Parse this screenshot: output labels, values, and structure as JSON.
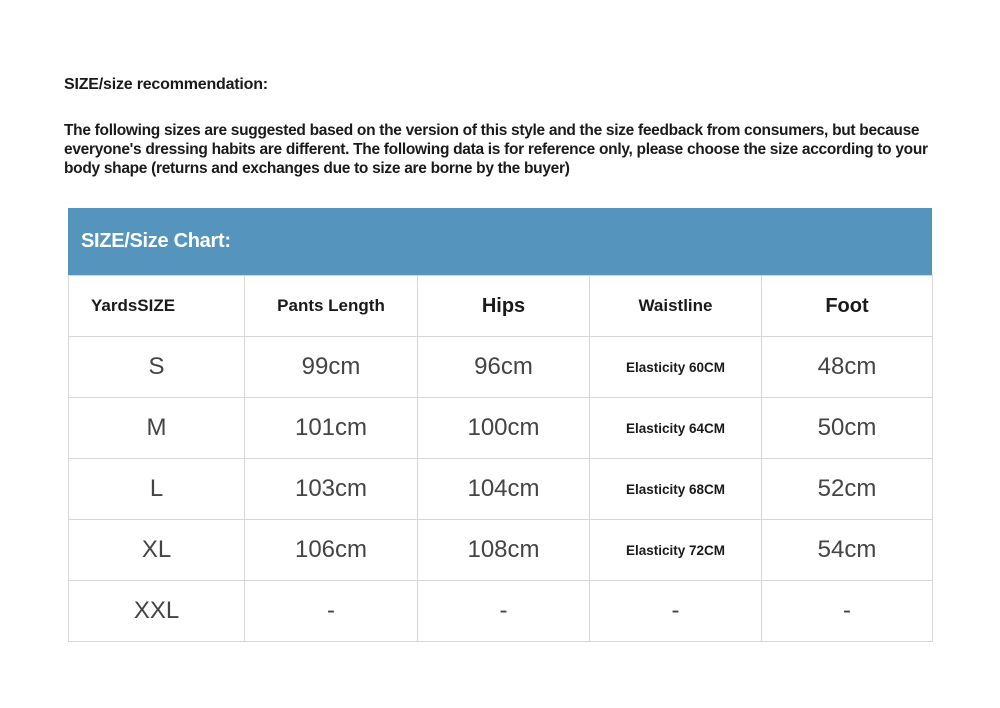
{
  "recommendation": {
    "title": "SIZE/size recommendation:",
    "text": "The following sizes are suggested based on the version of this style and the size feedback from consumers, but because everyone's dressing habits are different. The following data is for reference only, please choose the size according to your body shape (returns and exchanges due to size are borne by the buyer)"
  },
  "chart": {
    "title": "SIZE/Size Chart:",
    "header_color": "#5595bd",
    "columns": [
      "YardsSIZE",
      "Pants Length",
      "Hips",
      "Waistline",
      "Foot"
    ],
    "rows": [
      [
        "S",
        "99cm",
        "96cm",
        "Elasticity 60CM",
        "48cm"
      ],
      [
        "M",
        "101cm",
        "100cm",
        "Elasticity 64CM",
        "50cm"
      ],
      [
        "L",
        "103cm",
        "104cm",
        "Elasticity 68CM",
        "52cm"
      ],
      [
        "XL",
        "106cm",
        "108cm",
        "Elasticity 72CM",
        "54cm"
      ],
      [
        "XXL",
        "-",
        "-",
        "-",
        "-"
      ]
    ]
  }
}
